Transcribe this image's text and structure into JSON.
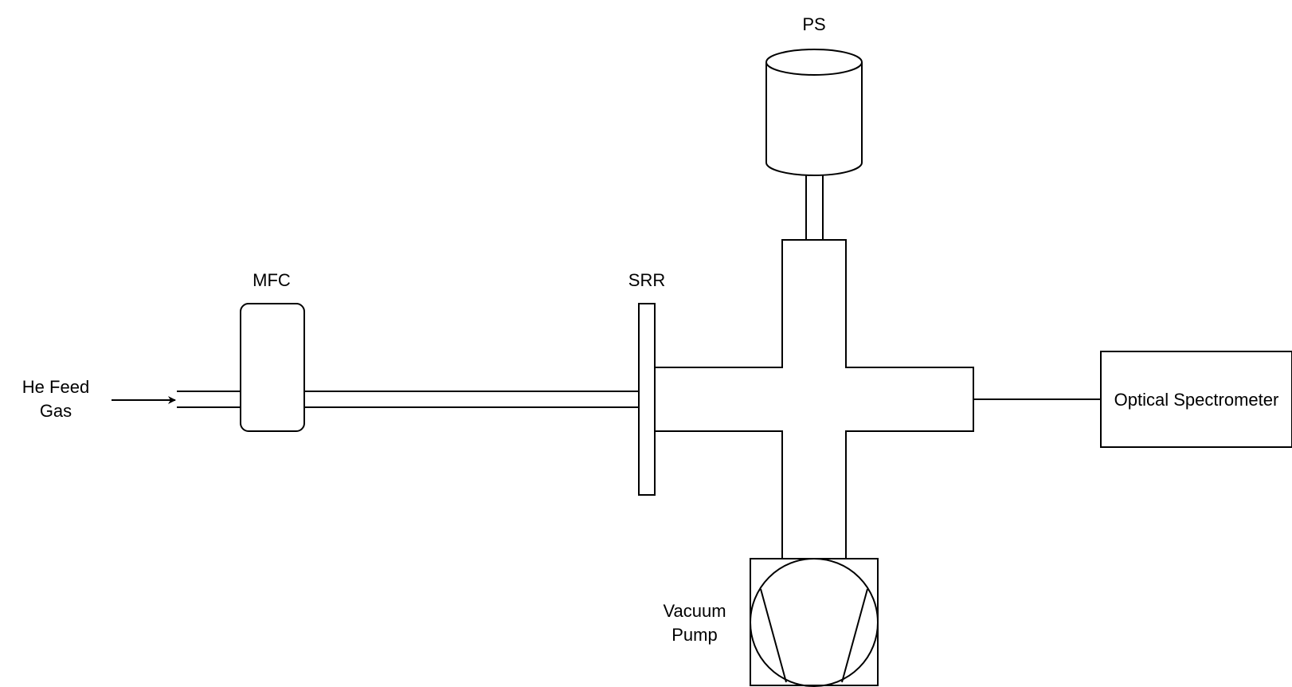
{
  "labels": {
    "feed_gas_line1": "He Feed",
    "feed_gas_line2": "Gas",
    "mfc": "MFC",
    "srr": "SRR",
    "ps": "PS",
    "vacuum_pump_line1": "Vacuum",
    "vacuum_pump_line2": "Pump",
    "optical_spectrometer": "Optical Spectrometer"
  },
  "colors": {
    "stroke": "#000000",
    "background": "#ffffff"
  }
}
